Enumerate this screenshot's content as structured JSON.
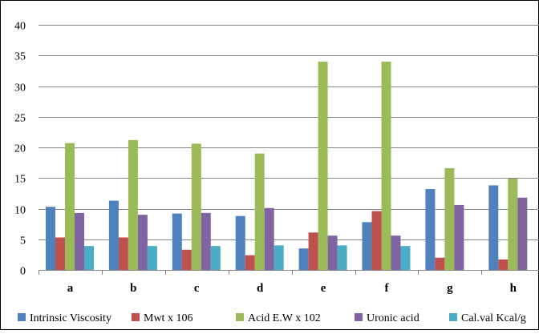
{
  "chart_data": {
    "type": "bar",
    "title": "",
    "xlabel": "",
    "ylabel": "",
    "categories": [
      "a",
      "b",
      "c",
      "d",
      "e",
      "f",
      "g",
      "h"
    ],
    "ylim": [
      0,
      40
    ],
    "yticks": [
      "0",
      "5",
      "10",
      "15",
      "20",
      "25",
      "30",
      "35",
      "40"
    ],
    "grid": true,
    "legend_position": "bottom",
    "series": [
      {
        "name": "Intrinsic Viscosity",
        "color": "#4F81BD",
        "values": [
          10.3,
          11.3,
          9.2,
          8.8,
          3.5,
          7.8,
          13.2,
          13.8
        ]
      },
      {
        "name": "Mwt x 106",
        "color": "#C0504D",
        "values": [
          5.3,
          5.3,
          3.3,
          2.4,
          6.1,
          9.6,
          2.0,
          1.7
        ]
      },
      {
        "name": "Acid E.W x 102",
        "color": "#9BBB59",
        "values": [
          20.7,
          21.2,
          20.6,
          19.0,
          34.0,
          34.0,
          16.6,
          14.9
        ]
      },
      {
        "name": "Uronic  acid",
        "color": "#8064A2",
        "values": [
          9.3,
          9.0,
          9.3,
          10.1,
          5.6,
          5.6,
          10.6,
          11.8
        ]
      },
      {
        "name": "Cal.val  Kcal/g",
        "color": "#4BACC6",
        "values": [
          3.9,
          3.9,
          3.9,
          4.0,
          4.0,
          3.9,
          null,
          null
        ]
      }
    ]
  }
}
